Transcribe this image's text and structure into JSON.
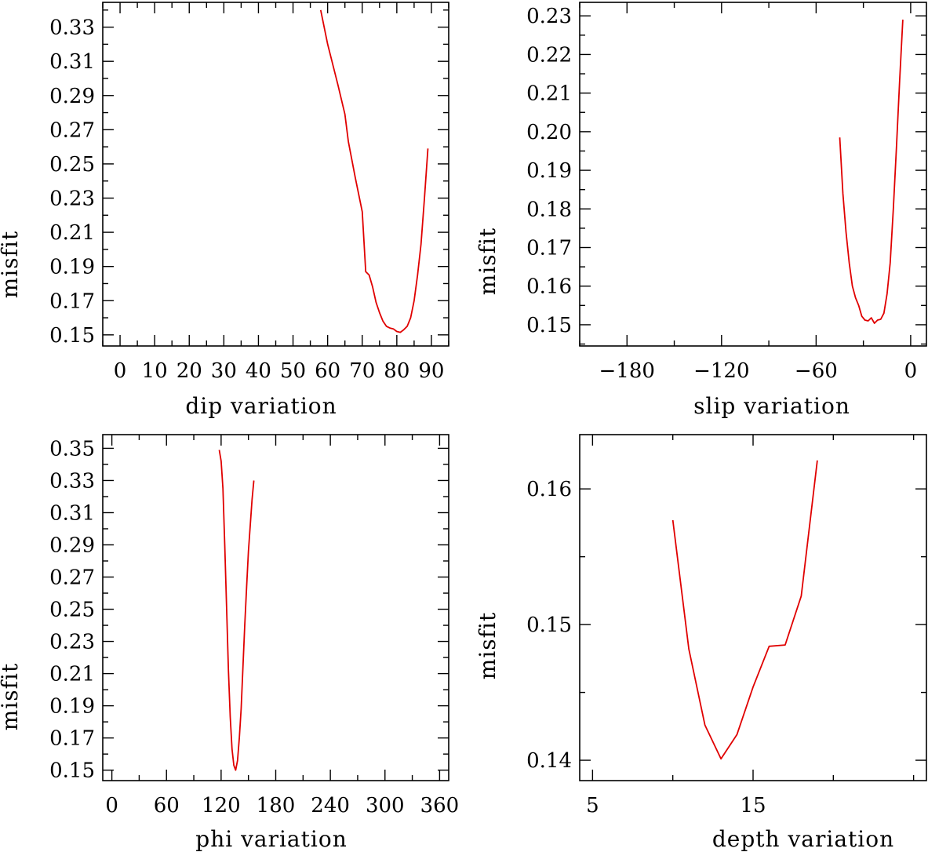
{
  "chart_data": [
    {
      "type": "line",
      "xlabel": "dip    variation",
      "ylabel": "misfit",
      "xlim": [
        -5,
        95
      ],
      "ylim": [
        0.1435,
        0.3445
      ],
      "xticks": [
        0,
        10,
        20,
        30,
        40,
        50,
        60,
        70,
        80,
        90
      ],
      "xtick_labels": [
        "0",
        "10",
        "20",
        "30",
        "40",
        "50",
        "60",
        "70",
        "80",
        "90"
      ],
      "yticks": [
        0.15,
        0.17,
        0.19,
        0.21,
        0.23,
        0.25,
        0.27,
        0.29,
        0.31,
        0.33
      ],
      "ytick_labels": [
        "0.15",
        "0.17",
        "0.19",
        "0.21",
        "0.23",
        "0.25",
        "0.27",
        "0.29",
        "0.31",
        "0.33"
      ],
      "series": [
        {
          "color": "#e00000",
          "x": [
            58,
            60,
            61,
            63,
            65,
            66,
            68,
            70,
            71,
            72,
            73,
            74,
            75,
            76,
            77,
            78,
            79,
            80,
            81,
            82,
            83,
            84,
            85,
            86,
            87,
            88,
            89
          ],
          "y": [
            0.34,
            0.32,
            0.312,
            0.296,
            0.279,
            0.263,
            0.242,
            0.222,
            0.187,
            0.185,
            0.178,
            0.169,
            0.163,
            0.158,
            0.155,
            0.154,
            0.1535,
            0.152,
            0.1515,
            0.153,
            0.155,
            0.16,
            0.17,
            0.185,
            0.203,
            0.23,
            0.259
          ]
        }
      ]
    },
    {
      "type": "line",
      "xlabel": "slip   variation",
      "ylabel": "misfit",
      "xlim": [
        -210,
        10
      ],
      "ylim": [
        0.1445,
        0.2335
      ],
      "xticks": [
        -180,
        -120,
        -60,
        0
      ],
      "xtick_labels": [
        "−180",
        "−120",
        "−60",
        "0"
      ],
      "yticks": [
        0.15,
        0.16,
        0.17,
        0.18,
        0.19,
        0.2,
        0.21,
        0.22,
        0.23
      ],
      "ytick_labels": [
        "0.15",
        "0.16",
        "0.17",
        "0.18",
        "0.19",
        "0.20",
        "0.21",
        "0.22",
        "0.23"
      ],
      "series": [
        {
          "color": "#e00000",
          "x": [
            -45,
            -43,
            -41,
            -39,
            -37,
            -35,
            -33,
            -31,
            -29,
            -27,
            -25,
            -23,
            -21,
            -19,
            -17,
            -15,
            -13,
            -11,
            -9,
            -7,
            -5
          ],
          "y": [
            0.1985,
            0.184,
            0.174,
            0.166,
            0.16,
            0.157,
            0.155,
            0.1522,
            0.1512,
            0.151,
            0.1518,
            0.1504,
            0.1512,
            0.1514,
            0.153,
            0.158,
            0.166,
            0.18,
            0.196,
            0.213,
            0.229
          ]
        }
      ]
    },
    {
      "type": "line",
      "xlabel": "phi    variation",
      "ylabel": "misfit",
      "xlim": [
        -10,
        370
      ],
      "ylim": [
        0.1435,
        0.3585
      ],
      "xticks": [
        0,
        60,
        120,
        180,
        240,
        300,
        360
      ],
      "xtick_labels": [
        "0",
        "60",
        "120",
        "180",
        "240",
        "300",
        "360"
      ],
      "yticks": [
        0.15,
        0.17,
        0.19,
        0.21,
        0.23,
        0.25,
        0.27,
        0.29,
        0.31,
        0.33,
        0.35
      ],
      "ytick_labels": [
        "0.15",
        "0.17",
        "0.19",
        "0.21",
        "0.23",
        "0.25",
        "0.27",
        "0.29",
        "0.31",
        "0.33",
        "0.35"
      ],
      "series": [
        {
          "color": "#e00000",
          "x": [
            118,
            120,
            122,
            124,
            126,
            128,
            130,
            132,
            134,
            136,
            138,
            140,
            142,
            144,
            146,
            148,
            150,
            152,
            154,
            156
          ],
          "y": [
            0.349,
            0.342,
            0.325,
            0.29,
            0.252,
            0.212,
            0.183,
            0.163,
            0.153,
            0.15,
            0.156,
            0.17,
            0.188,
            0.214,
            0.24,
            0.264,
            0.286,
            0.302,
            0.318,
            0.33
          ]
        }
      ]
    },
    {
      "type": "line",
      "xlabel": "depth  variation",
      "ylabel": "misfit",
      "xlim": [
        4.2,
        25.8
      ],
      "ylim": [
        0.1385,
        0.164
      ],
      "xticks": [
        5,
        15
      ],
      "xtick_labels": [
        "5",
        "15"
      ],
      "yticks": [
        0.14,
        0.15,
        0.16
      ],
      "ytick_labels": [
        "0.14",
        "0.15",
        "0.16"
      ],
      "series": [
        {
          "color": "#e00000",
          "x": [
            10,
            11,
            12,
            13,
            14,
            15,
            16,
            17,
            18,
            19
          ],
          "y": [
            0.1577,
            0.1482,
            0.1426,
            0.1401,
            0.1419,
            0.1454,
            0.1484,
            0.1485,
            0.1521,
            0.1621
          ]
        }
      ]
    }
  ]
}
